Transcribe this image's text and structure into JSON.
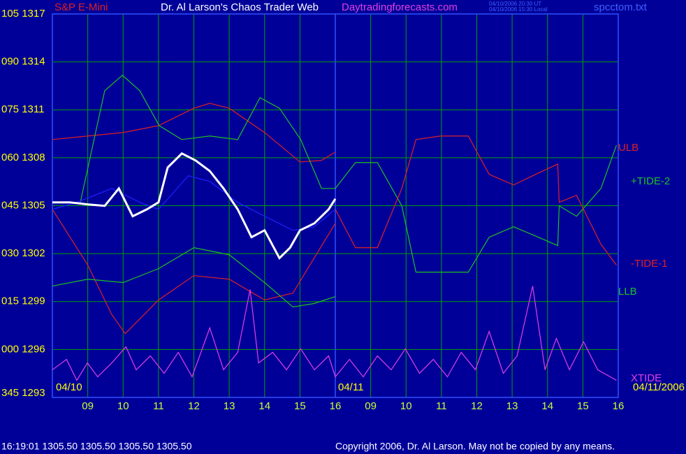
{
  "chart_data": {
    "type": "line",
    "title": "Dr. Al Larson's Chaos Trader Web",
    "subtitle": "S&P E-Mini",
    "website": "Daytradingforecasts.com",
    "timestamps": [
      "04/10/2006 20:30 UT",
      "04/10/2006 15:30 Local"
    ],
    "file_name": "spcctom.txt",
    "annotations": [
      "04/10",
      "04/11",
      "04/11/2006"
    ],
    "status_line": "16:19:01  1305.50 1305.50 1305.50 1305.50",
    "copyright": "Copyright 2006, Dr. Al Larson. May not be copied by any means.",
    "xlim": [
      8,
      24
    ],
    "xticks": [
      {
        "value": 9,
        "label": "09"
      },
      10,
      11,
      12,
      13,
      14,
      15,
      16,
      {
        "value": 17,
        "label": "09"
      },
      {
        "value": 18,
        "label": "10"
      },
      {
        "value": 19,
        "label": "11"
      },
      {
        "value": 20,
        "label": "12"
      },
      {
        "value": 21,
        "label": "13"
      },
      {
        "value": 22,
        "label": "14"
      },
      {
        "value": 23,
        "label": "15"
      },
      {
        "value": 24,
        "label": "16"
      }
    ],
    "ylim": [
      1293,
      1317
    ],
    "yticks": [
      {
        "value": 1317,
        "label": "105 1317"
      },
      {
        "value": 1314,
        "label": "090 1314"
      },
      {
        "value": 1311,
        "label": "075 1311"
      },
      {
        "value": 1308,
        "label": "060 1308"
      },
      {
        "value": 1305,
        "label": "045 1305"
      },
      {
        "value": 1302,
        "label": "030 1302"
      },
      {
        "value": 1299,
        "label": "015 1299"
      },
      {
        "value": 1296,
        "label": "000 1296"
      },
      {
        "value": 1293,
        "label": "345 1293"
      }
    ],
    "grid": true,
    "series": [
      {
        "name": "ULB",
        "color": "#e02020",
        "x": [
          8,
          9,
          10,
          11,
          12,
          12.45,
          13,
          14,
          15,
          15.6,
          16
        ],
        "values": [
          1309.14,
          1309.36,
          1309.58,
          1310.01,
          1311.1,
          1311.41,
          1311.1,
          1309.58,
          1307.74,
          1307.83,
          1308.35
        ]
      },
      {
        "color": "#20c020",
        "x": [
          8.79,
          9.48,
          9.98,
          10.47,
          11.02,
          11.66,
          12.45,
          13.24,
          13.87,
          14.42,
          15.02,
          15.61,
          16
        ],
        "values": [
          1305.21,
          1312.2,
          1313.16,
          1312.2,
          1310.01,
          1309.14,
          1309.36,
          1309.14,
          1311.76,
          1311.1,
          1309.14,
          1306.08,
          1306.08
        ]
      },
      {
        "color": "#e02020",
        "x": [
          8,
          9,
          9.67,
          10.06,
          11,
          12,
          13,
          14,
          14.8,
          15.4,
          16
        ],
        "values": [
          1304.77,
          1301.28,
          1298.22,
          1296.99,
          1299.1,
          1300.62,
          1300.4,
          1299.1,
          1299.53,
          1301.72,
          1303.9
        ]
      },
      {
        "name": "LLB",
        "color": "#20c020",
        "x": [
          8,
          9,
          10,
          11,
          12,
          13,
          14,
          14.8,
          15.4,
          16
        ],
        "values": [
          1299.97,
          1300.4,
          1300.19,
          1301.06,
          1302.37,
          1301.93,
          1300.19,
          1298.66,
          1298.88,
          1299.31
        ]
      },
      {
        "color": "#2020ff",
        "x": [
          8,
          8.69,
          9.68,
          10.47,
          11,
          11.84,
          12.45,
          13.24,
          14,
          14.8,
          15.4,
          16
        ],
        "values": [
          1304.77,
          1305.21,
          1306.08,
          1305.21,
          1304.77,
          1306.87,
          1306.52,
          1305.21,
          1304.34,
          1303.46,
          1303.68,
          1304.77
        ]
      },
      {
        "color": "#ffffff",
        "x": [
          8,
          8.49,
          9,
          9.48,
          9.88,
          10.27,
          10.67,
          11,
          11.26,
          11.66,
          12.05,
          12.45,
          12.84,
          13.24,
          13.63,
          14,
          14.42,
          14.72,
          15,
          15.41,
          15.81,
          16
        ],
        "values": [
          1305.21,
          1305.21,
          1305.08,
          1304.99,
          1306.08,
          1304.34,
          1304.77,
          1305.21,
          1307.39,
          1308.27,
          1307.83,
          1307.17,
          1306.08,
          1304.77,
          1303.03,
          1303.46,
          1301.72,
          1302.37,
          1303.46,
          1303.9,
          1304.77,
          1305.43
        ]
      },
      {
        "name": "+TIDE-2",
        "color": "#20c020",
        "x": [
          16,
          16.57,
          17.19,
          17.88,
          18.28,
          18.97,
          19.76,
          20.35,
          21.04,
          21.74,
          22.29,
          22.33,
          22.82,
          23.51,
          23.95
        ],
        "values": [
          1306.08,
          1307.7,
          1307.7,
          1304.99,
          1300.84,
          1300.84,
          1300.84,
          1303.03,
          1303.68,
          1303.03,
          1302.5,
          1304.99,
          1304.34,
          1306.08,
          1308.79
        ]
      },
      {
        "name": "-TIDE-1",
        "color": "#e02020",
        "x": [
          16,
          16.57,
          17.19,
          17.88,
          18.28,
          18.97,
          19.76,
          20.35,
          21.04,
          21.74,
          22.29,
          22.33,
          22.82,
          23.51,
          23.95
        ],
        "values": [
          1304.77,
          1302.37,
          1302.37,
          1306.08,
          1309.14,
          1309.36,
          1309.36,
          1306.96,
          1306.3,
          1307.04,
          1307.61,
          1305.21,
          1305.65,
          1302.59,
          1301.28
        ]
      },
      {
        "name": "XTIDE",
        "color": "#e040e0",
        "x": [
          8,
          8.4,
          8.69,
          8.99,
          9.28,
          9.68,
          10.08,
          10.37,
          10.77,
          11.16,
          11.56,
          11.95,
          12.45,
          12.84,
          13.24,
          13.59,
          13.83,
          14.23,
          14.62,
          15.02,
          15.41,
          15.81,
          16,
          16.4,
          16.79,
          17.19,
          17.58,
          17.98,
          18.38,
          18.77,
          19.17,
          19.56,
          19.96,
          20.35,
          20.75,
          21.14,
          21.58,
          21.93,
          22.25,
          22.62,
          23.02,
          23.42,
          23.95
        ],
        "values": [
          1294.73,
          1295.38,
          1294.07,
          1295.16,
          1294.29,
          1295.16,
          1296.17,
          1294.73,
          1295.6,
          1294.51,
          1295.82,
          1294.29,
          1297.35,
          1294.73,
          1295.82,
          1299.75,
          1295.16,
          1295.82,
          1294.73,
          1296.04,
          1294.73,
          1295.6,
          1294.29,
          1295.38,
          1294.29,
          1295.6,
          1294.73,
          1296.04,
          1294.51,
          1295.38,
          1294.29,
          1295.82,
          1294.73,
          1297.13,
          1294.51,
          1295.6,
          1299.97,
          1294.73,
          1296.69,
          1294.73,
          1296.48,
          1294.73,
          1294.07
        ]
      }
    ]
  }
}
